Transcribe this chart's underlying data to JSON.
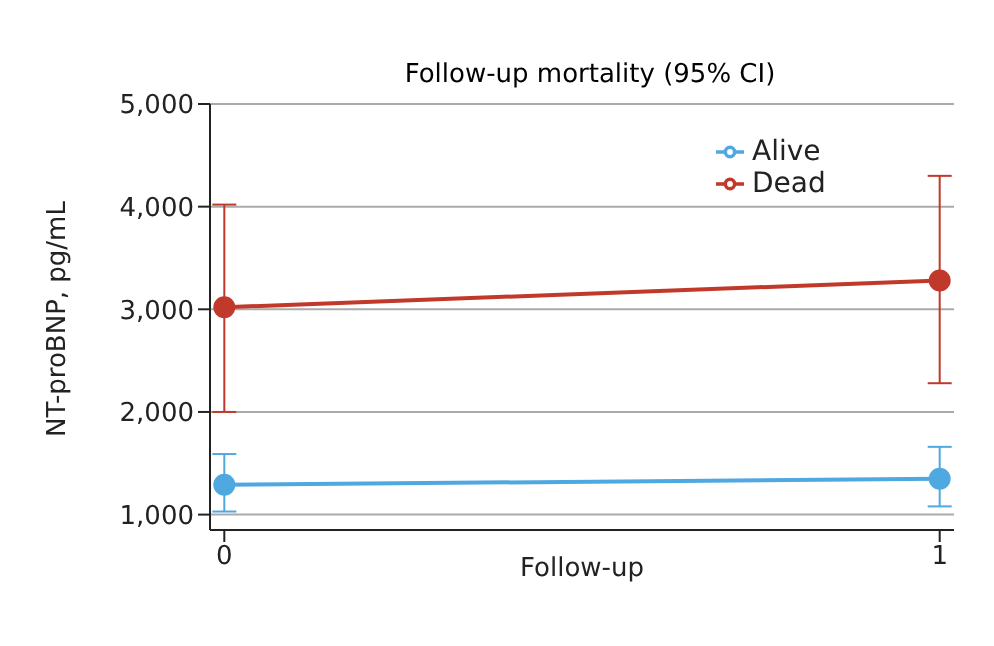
{
  "chart_data": {
    "type": "line",
    "title": "Follow-up mortality (95% CI)",
    "xlabel": "Follow-up",
    "ylabel": "NT-proBNP, pg/mL",
    "x": [
      0,
      1
    ],
    "xlim": [
      -0.02,
      1.02
    ],
    "xticks": [
      0,
      1
    ],
    "ylim": [
      850,
      5000
    ],
    "yticks": [
      {
        "value": 1000,
        "label": "1,000"
      },
      {
        "value": 2000,
        "label": "2,000"
      },
      {
        "value": 3000,
        "label": "3,000"
      },
      {
        "value": 4000,
        "label": "4,000"
      },
      {
        "value": 5000,
        "label": "5,000"
      }
    ],
    "grid": "y",
    "legend": "top right",
    "marker": "circle",
    "line_style": "solid",
    "series": [
      {
        "name": "Alive",
        "color": "#4fa8e0",
        "values": [
          1290,
          1350
        ],
        "errors": [
          [
            1030,
            1590
          ],
          [
            1080,
            1660
          ]
        ]
      },
      {
        "name": "Dead",
        "color": "#c0392b",
        "values": [
          3020,
          3280
        ],
        "errors": [
          [
            2000,
            4020
          ],
          [
            2280,
            4300
          ]
        ]
      }
    ]
  }
}
